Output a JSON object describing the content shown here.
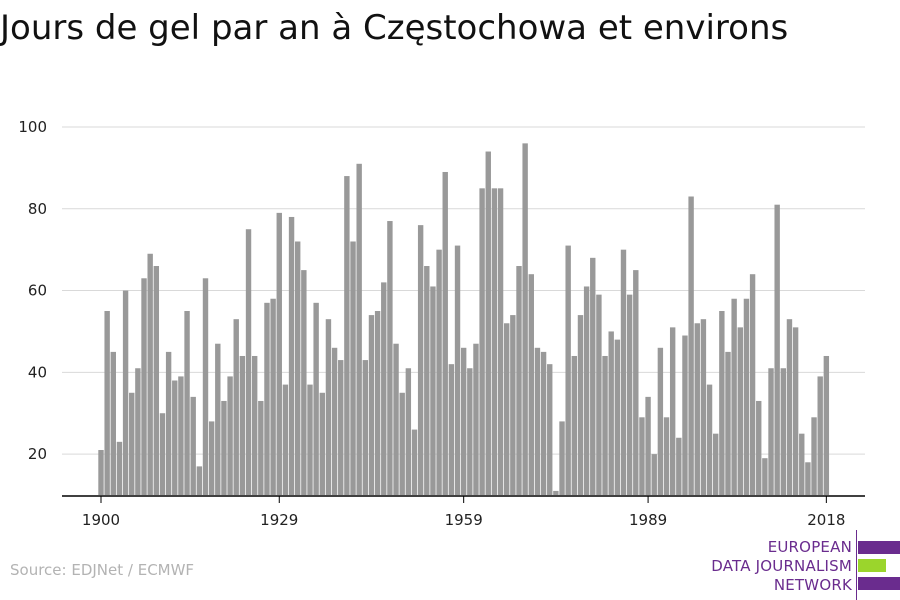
{
  "title": "Jours de gel par an à Częstochowa et environs",
  "source": "Source: EDJNet / ECMWF",
  "logo": {
    "line1": "EUROPEAN",
    "line2": "DATA JOURNALISM",
    "line3": "NETWORK",
    "colors": {
      "purple": "#6a2c8e",
      "green": "#9bd52c"
    }
  },
  "colors": {
    "bar": "#999999",
    "grid": "#d9d9d9",
    "axis": "#000000"
  },
  "chart_data": {
    "type": "bar",
    "title": "Jours de gel par an à Częstochowa et environs",
    "xlabel": "",
    "ylabel": "",
    "ylim": [
      10,
      100
    ],
    "yticks": [
      20,
      40,
      60,
      80,
      100
    ],
    "xticks": [
      1900,
      1929,
      1959,
      1989,
      2018
    ],
    "grid": true,
    "x": [
      1900,
      1901,
      1902,
      1903,
      1904,
      1905,
      1906,
      1907,
      1908,
      1909,
      1910,
      1911,
      1912,
      1913,
      1914,
      1915,
      1916,
      1917,
      1918,
      1919,
      1920,
      1921,
      1922,
      1923,
      1924,
      1925,
      1926,
      1927,
      1928,
      1929,
      1930,
      1931,
      1932,
      1933,
      1934,
      1935,
      1936,
      1937,
      1938,
      1939,
      1940,
      1941,
      1942,
      1943,
      1944,
      1945,
      1946,
      1947,
      1948,
      1949,
      1950,
      1951,
      1952,
      1953,
      1954,
      1955,
      1956,
      1957,
      1958,
      1959,
      1960,
      1961,
      1962,
      1963,
      1964,
      1965,
      1966,
      1967,
      1968,
      1969,
      1970,
      1971,
      1972,
      1973,
      1974,
      1975,
      1976,
      1977,
      1978,
      1979,
      1980,
      1981,
      1982,
      1983,
      1984,
      1985,
      1986,
      1987,
      1988,
      1989,
      1990,
      1991,
      1992,
      1993,
      1994,
      1995,
      1996,
      1997,
      1998,
      1999,
      2000,
      2001,
      2002,
      2003,
      2004,
      2005,
      2006,
      2007,
      2008,
      2009,
      2010,
      2011,
      2012,
      2013,
      2014,
      2015,
      2016,
      2017,
      2018
    ],
    "values": [
      21,
      55,
      45,
      23,
      60,
      35,
      41,
      63,
      69,
      66,
      30,
      45,
      38,
      39,
      55,
      34,
      17,
      63,
      28,
      47,
      33,
      39,
      53,
      44,
      75,
      44,
      33,
      57,
      58,
      79,
      37,
      78,
      72,
      65,
      37,
      57,
      35,
      53,
      46,
      43,
      88,
      72,
      91,
      43,
      54,
      55,
      62,
      77,
      47,
      35,
      41,
      26,
      76,
      66,
      61,
      70,
      89,
      42,
      71,
      46,
      41,
      47,
      85,
      94,
      85,
      85,
      52,
      54,
      66,
      96,
      64,
      46,
      45,
      42,
      11,
      28,
      71,
      44,
      54,
      61,
      68,
      59,
      44,
      50,
      48,
      70,
      59,
      65,
      29,
      34,
      20,
      46,
      29,
      51,
      24,
      49,
      83,
      52,
      53,
      37,
      25,
      55,
      45,
      58,
      51,
      58,
      64,
      33,
      19,
      41,
      81,
      41,
      53,
      51,
      25,
      18,
      29,
      39,
      44
    ]
  }
}
